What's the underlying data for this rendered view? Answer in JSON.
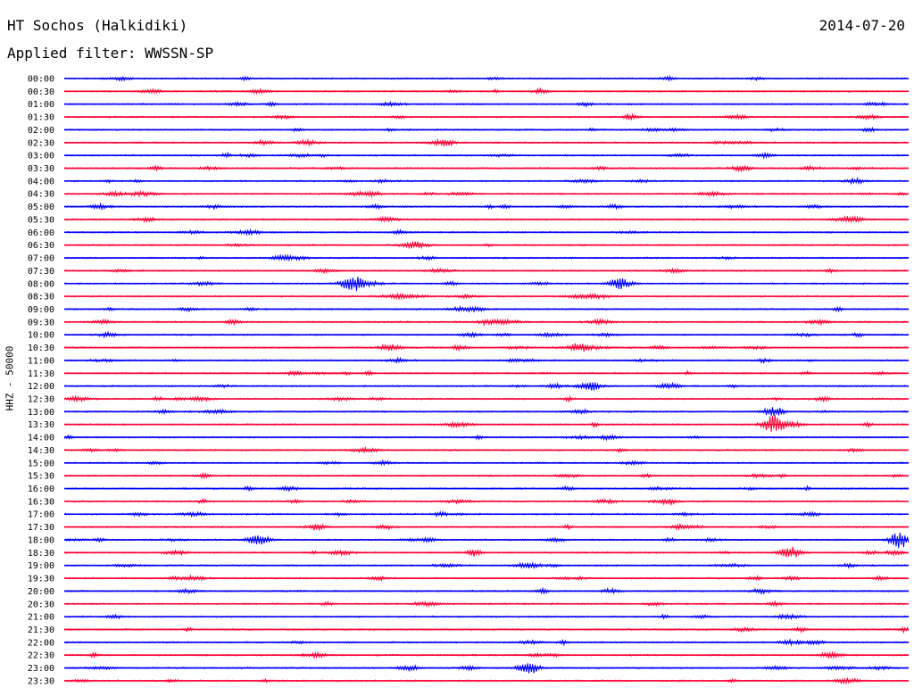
{
  "header": {
    "station": "HT Sochos (Halkidiki)",
    "date": "2014-07-20",
    "filter": "Applied filter: WWSSN-SP",
    "channel": "HHZ - 50000"
  },
  "colors": {
    "blue": "#0000ff",
    "red": "#ff0033",
    "text": "#000000",
    "background": "#ffffff"
  },
  "chart_data": {
    "type": "helicorder",
    "title": "HT Sochos (Halkidiki)",
    "date": "2014-07-20",
    "filter": "WWSSN-SP",
    "ylabel": "HHZ - 50000",
    "row_colors": [
      "blue",
      "red"
    ],
    "rows": [
      {
        "time": "00:00",
        "color": "blue"
      },
      {
        "time": "00:30",
        "color": "red"
      },
      {
        "time": "01:00",
        "color": "blue"
      },
      {
        "time": "01:30",
        "color": "red"
      },
      {
        "time": "02:00",
        "color": "blue"
      },
      {
        "time": "02:30",
        "color": "red"
      },
      {
        "time": "03:00",
        "color": "blue"
      },
      {
        "time": "03:30",
        "color": "red"
      },
      {
        "time": "04:00",
        "color": "blue"
      },
      {
        "time": "04:30",
        "color": "red"
      },
      {
        "time": "05:00",
        "color": "blue"
      },
      {
        "time": "05:30",
        "color": "red"
      },
      {
        "time": "06:00",
        "color": "blue"
      },
      {
        "time": "06:30",
        "color": "red"
      },
      {
        "time": "07:00",
        "color": "blue"
      },
      {
        "time": "07:30",
        "color": "red"
      },
      {
        "time": "08:00",
        "color": "blue"
      },
      {
        "time": "08:30",
        "color": "red"
      },
      {
        "time": "09:00",
        "color": "blue"
      },
      {
        "time": "09:30",
        "color": "red"
      },
      {
        "time": "10:00",
        "color": "blue"
      },
      {
        "time": "10:30",
        "color": "red"
      },
      {
        "time": "11:00",
        "color": "blue"
      },
      {
        "time": "11:30",
        "color": "red"
      },
      {
        "time": "12:00",
        "color": "blue"
      },
      {
        "time": "12:30",
        "color": "red"
      },
      {
        "time": "13:00",
        "color": "blue"
      },
      {
        "time": "13:30",
        "color": "red"
      },
      {
        "time": "14:00",
        "color": "blue"
      },
      {
        "time": "14:30",
        "color": "red"
      },
      {
        "time": "15:00",
        "color": "blue"
      },
      {
        "time": "15:30",
        "color": "red"
      },
      {
        "time": "16:00",
        "color": "blue"
      },
      {
        "time": "16:30",
        "color": "red"
      },
      {
        "time": "17:00",
        "color": "blue"
      },
      {
        "time": "17:30",
        "color": "red"
      },
      {
        "time": "18:00",
        "color": "blue"
      },
      {
        "time": "18:30",
        "color": "red"
      },
      {
        "time": "19:00",
        "color": "blue"
      },
      {
        "time": "19:30",
        "color": "red"
      },
      {
        "time": "20:00",
        "color": "blue"
      },
      {
        "time": "20:30",
        "color": "red"
      },
      {
        "time": "21:00",
        "color": "blue"
      },
      {
        "time": "21:30",
        "color": "red"
      },
      {
        "time": "22:00",
        "color": "blue"
      },
      {
        "time": "22:30",
        "color": "red"
      },
      {
        "time": "23:00",
        "color": "blue"
      },
      {
        "time": "23:30",
        "color": "red"
      }
    ],
    "events": [
      {
        "time": "08:00",
        "fraction": 0.34,
        "amplitude": 2.6
      },
      {
        "time": "08:00",
        "fraction": 0.66,
        "amplitude": 1.8
      },
      {
        "time": "10:30",
        "fraction": 0.61,
        "amplitude": 1.6
      },
      {
        "time": "13:00",
        "fraction": 0.84,
        "amplitude": 1.7
      },
      {
        "time": "13:30",
        "fraction": 0.84,
        "amplitude": 3.4
      },
      {
        "time": "18:00",
        "fraction": 0.23,
        "amplitude": 2.0
      },
      {
        "time": "18:00",
        "fraction": 0.99,
        "amplitude": 3.0
      },
      {
        "time": "18:30",
        "fraction": 0.86,
        "amplitude": 2.0
      },
      {
        "time": "23:00",
        "fraction": 0.55,
        "amplitude": 2.2
      }
    ]
  }
}
